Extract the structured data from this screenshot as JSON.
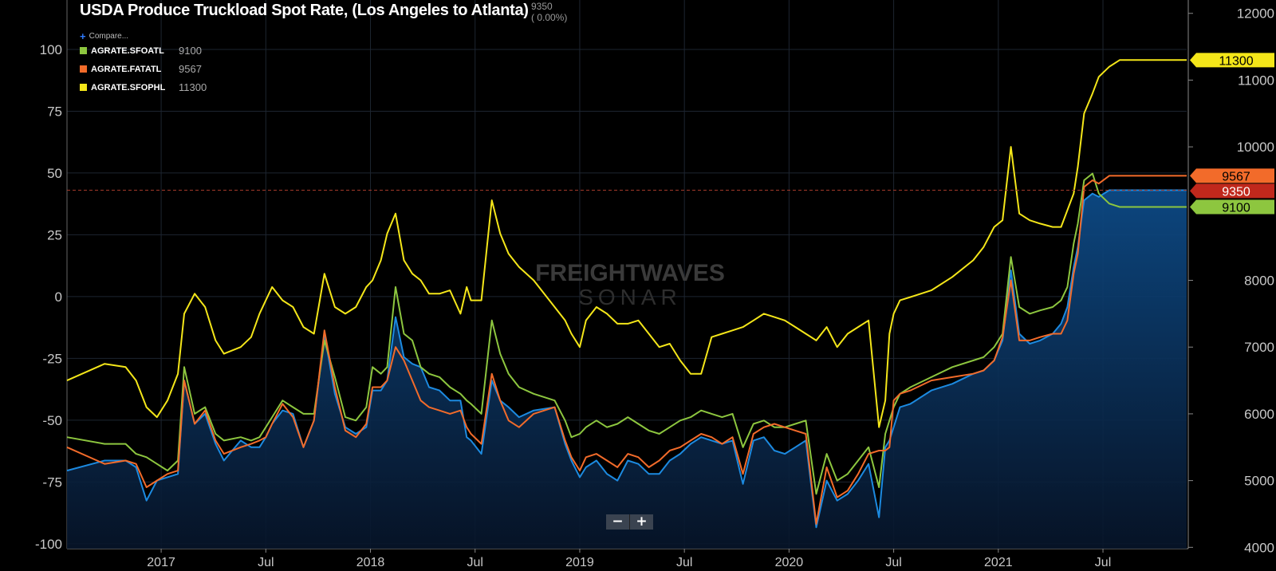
{
  "title": "USDA Produce Truckload Spot Rate, (Los Angeles to Atlanta)",
  "title_value": "9350",
  "title_change": "( 0.00%)",
  "compare_label": "Compare...",
  "legend": [
    {
      "name": "AGRATE.SFOATL",
      "value": "9100",
      "color": "#8dc63f"
    },
    {
      "name": "AGRATE.FATATL",
      "value": "9567",
      "color": "#f26b2a"
    },
    {
      "name": "AGRATE.SFOPHL",
      "value": "11300",
      "color": "#f4e619"
    }
  ],
  "watermark": {
    "line1": "FREIGHTWAVES",
    "line2": "SONAR"
  },
  "zoom": {
    "out": "−",
    "in": "+"
  },
  "chart_data": {
    "type": "line",
    "title": "USDA Produce Truckload Spot Rate, (Los Angeles to Atlanta)",
    "xlim": [
      2016.17,
      2021.52
    ],
    "x_ticks": [
      {
        "x": 2016.62,
        "label": "2017"
      },
      {
        "x": 2017.12,
        "label": "Jul"
      },
      {
        "x": 2017.62,
        "label": "2018"
      },
      {
        "x": 2018.12,
        "label": "Jul"
      },
      {
        "x": 2018.62,
        "label": "2019"
      },
      {
        "x": 2019.12,
        "label": "Jul"
      },
      {
        "x": 2019.62,
        "label": "2020"
      },
      {
        "x": 2020.12,
        "label": "Jul"
      },
      {
        "x": 2020.62,
        "label": "2021"
      },
      {
        "x": 2021.12,
        "label": "Jul"
      }
    ],
    "left_axis": {
      "ylim": [
        -102,
        120
      ],
      "ticks": [
        100,
        75,
        50,
        25,
        0,
        -25,
        -50,
        -75,
        -100
      ]
    },
    "right_axis": {
      "ylim": [
        3980,
        12200
      ],
      "ticks": [
        12000,
        11000,
        10000,
        8000,
        7000,
        6000,
        5000,
        4000
      ]
    },
    "reference_line": {
      "axis": "right",
      "value": 9350,
      "color": "#a33a2a"
    },
    "series": [
      {
        "name": "",
        "axis": "right",
        "color": "#1c8ae0",
        "fill": true,
        "x": [
          2016.17,
          2016.35,
          2016.45,
          2016.5,
          2016.55,
          2016.6,
          2016.65,
          2016.7,
          2016.73,
          2016.78,
          2016.83,
          2016.88,
          2016.92,
          2017.0,
          2017.05,
          2017.09,
          2017.12,
          2017.15,
          2017.2,
          2017.25,
          2017.3,
          2017.35,
          2017.4,
          2017.45,
          2017.5,
          2017.55,
          2017.6,
          2017.63,
          2017.67,
          2017.7,
          2017.74,
          2017.78,
          2017.82,
          2017.86,
          2017.9,
          2017.95,
          2018.0,
          2018.05,
          2018.08,
          2018.1,
          2018.15,
          2018.2,
          2018.24,
          2018.28,
          2018.33,
          2018.4,
          2018.5,
          2018.55,
          2018.58,
          2018.62,
          2018.65,
          2018.7,
          2018.75,
          2018.8,
          2018.85,
          2018.9,
          2018.95,
          2019.0,
          2019.05,
          2019.1,
          2019.15,
          2019.2,
          2019.25,
          2019.3,
          2019.35,
          2019.4,
          2019.45,
          2019.5,
          2019.55,
          2019.6,
          2019.65,
          2019.7,
          2019.75,
          2019.8,
          2019.85,
          2019.9,
          2019.95,
          2020.0,
          2020.05,
          2020.08,
          2020.1,
          2020.12,
          2020.15,
          2020.2,
          2020.3,
          2020.4,
          2020.5,
          2020.55,
          2020.6,
          2020.64,
          2020.68,
          2020.72,
          2020.77,
          2020.82,
          2020.88,
          2020.92,
          2020.95,
          2020.98,
          2021.0,
          2021.03,
          2021.07,
          2021.1,
          2021.15,
          2021.2,
          2021.3,
          2021.35,
          2021.4,
          2021.45,
          2021.52
        ],
        "y": [
          5150,
          5300,
          5300,
          5200,
          4700,
          5000,
          5050,
          5100,
          6500,
          5850,
          6000,
          5550,
          5300,
          5600,
          5500,
          5500,
          5650,
          5850,
          6050,
          6000,
          5500,
          5900,
          7200,
          6300,
          5800,
          5700,
          5800,
          6350,
          6350,
          6500,
          7450,
          6850,
          6750,
          6700,
          6400,
          6350,
          6200,
          6200,
          5650,
          5600,
          5400,
          6500,
          6200,
          6100,
          5950,
          6050,
          6100,
          5550,
          5300,
          5050,
          5200,
          5300,
          5100,
          5000,
          5300,
          5250,
          5100,
          5100,
          5300,
          5400,
          5550,
          5650,
          5600,
          5550,
          5600,
          4950,
          5600,
          5650,
          5450,
          5400,
          5500,
          5600,
          4300,
          5000,
          4700,
          4800,
          5000,
          5250,
          4450,
          5500,
          5600,
          5800,
          6100,
          6150,
          6350,
          6450,
          6600,
          6650,
          6800,
          7100,
          8150,
          7200,
          7050,
          7100,
          7200,
          7350,
          7600,
          8200,
          8500,
          9200,
          9300,
          9250,
          9350,
          9350,
          9350,
          9350,
          9350,
          9350,
          9350
        ]
      },
      {
        "name": "AGRATE.SFOATL",
        "axis": "right",
        "color": "#8dc63f",
        "x": [
          2016.17,
          2016.35,
          2016.45,
          2016.5,
          2016.55,
          2016.6,
          2016.65,
          2016.7,
          2016.73,
          2016.78,
          2016.83,
          2016.88,
          2016.92,
          2017.0,
          2017.05,
          2017.09,
          2017.12,
          2017.15,
          2017.2,
          2017.25,
          2017.3,
          2017.35,
          2017.4,
          2017.45,
          2017.5,
          2017.55,
          2017.6,
          2017.63,
          2017.67,
          2017.7,
          2017.74,
          2017.78,
          2017.82,
          2017.86,
          2017.9,
          2017.95,
          2018.0,
          2018.05,
          2018.08,
          2018.1,
          2018.15,
          2018.2,
          2018.24,
          2018.28,
          2018.33,
          2018.4,
          2018.5,
          2018.55,
          2018.58,
          2018.62,
          2018.65,
          2018.7,
          2018.75,
          2018.8,
          2018.85,
          2018.9,
          2018.95,
          2019.0,
          2019.05,
          2019.1,
          2019.15,
          2019.2,
          2019.25,
          2019.3,
          2019.35,
          2019.4,
          2019.45,
          2019.5,
          2019.55,
          2019.6,
          2019.65,
          2019.7,
          2019.75,
          2019.8,
          2019.85,
          2019.9,
          2019.95,
          2020.0,
          2020.05,
          2020.08,
          2020.1,
          2020.12,
          2020.15,
          2020.2,
          2020.3,
          2020.4,
          2020.5,
          2020.55,
          2020.6,
          2020.64,
          2020.68,
          2020.72,
          2020.77,
          2020.82,
          2020.88,
          2020.92,
          2020.95,
          2020.98,
          2021.0,
          2021.03,
          2021.07,
          2021.1,
          2021.15,
          2021.2,
          2021.3,
          2021.35,
          2021.4,
          2021.45,
          2021.52
        ],
        "y": [
          5650,
          5550,
          5550,
          5400,
          5350,
          5250,
          5150,
          5300,
          6700,
          6000,
          6100,
          5700,
          5600,
          5650,
          5600,
          5650,
          5800,
          5950,
          6200,
          6100,
          6000,
          6000,
          7100,
          6550,
          5950,
          5900,
          6100,
          6700,
          6600,
          6700,
          7900,
          7200,
          7100,
          6700,
          6600,
          6550,
          6400,
          6300,
          6200,
          6150,
          6000,
          7400,
          6900,
          6600,
          6400,
          6300,
          6200,
          5900,
          5650,
          5700,
          5800,
          5900,
          5800,
          5850,
          5950,
          5850,
          5750,
          5700,
          5800,
          5900,
          5950,
          6050,
          6000,
          5950,
          6000,
          5500,
          5850,
          5900,
          5800,
          5800,
          5850,
          5900,
          4800,
          5400,
          5000,
          5100,
          5300,
          5500,
          4900,
          5700,
          5900,
          6100,
          6300,
          6400,
          6550,
          6700,
          6800,
          6850,
          7000,
          7200,
          8350,
          7600,
          7500,
          7550,
          7600,
          7700,
          7900,
          8550,
          8850,
          9500,
          9600,
          9300,
          9150,
          9100,
          9100,
          9100,
          9100,
          9100,
          9100
        ]
      },
      {
        "name": "AGRATE.FATATL",
        "axis": "right",
        "color": "#f26b2a",
        "x": [
          2016.17,
          2016.35,
          2016.45,
          2016.5,
          2016.55,
          2016.6,
          2016.65,
          2016.7,
          2016.73,
          2016.78,
          2016.83,
          2016.88,
          2016.92,
          2017.0,
          2017.05,
          2017.09,
          2017.12,
          2017.15,
          2017.2,
          2017.25,
          2017.3,
          2017.35,
          2017.4,
          2017.45,
          2017.5,
          2017.55,
          2017.6,
          2017.63,
          2017.67,
          2017.7,
          2017.74,
          2017.78,
          2017.82,
          2017.86,
          2017.9,
          2017.95,
          2018.0,
          2018.05,
          2018.08,
          2018.1,
          2018.15,
          2018.2,
          2018.24,
          2018.28,
          2018.33,
          2018.4,
          2018.5,
          2018.55,
          2018.58,
          2018.62,
          2018.65,
          2018.7,
          2018.75,
          2018.8,
          2018.85,
          2018.9,
          2018.95,
          2019.0,
          2019.05,
          2019.1,
          2019.15,
          2019.2,
          2019.25,
          2019.3,
          2019.35,
          2019.4,
          2019.45,
          2019.5,
          2019.55,
          2019.6,
          2019.65,
          2019.7,
          2019.75,
          2019.8,
          2019.85,
          2019.9,
          2019.95,
          2020.0,
          2020.05,
          2020.08,
          2020.1,
          2020.12,
          2020.15,
          2020.2,
          2020.3,
          2020.4,
          2020.5,
          2020.55,
          2020.6,
          2020.64,
          2020.68,
          2020.72,
          2020.77,
          2020.82,
          2020.88,
          2020.92,
          2020.95,
          2020.98,
          2021.0,
          2021.03,
          2021.07,
          2021.1,
          2021.15,
          2021.2,
          2021.3,
          2021.35,
          2021.4,
          2021.45,
          2021.52
        ],
        "y": [
          5500,
          5250,
          5300,
          5250,
          4900,
          5000,
          5100,
          5150,
          6500,
          5850,
          6050,
          5600,
          5400,
          5500,
          5550,
          5600,
          5650,
          5850,
          6150,
          5950,
          5500,
          5900,
          7250,
          6400,
          5750,
          5650,
          5850,
          6400,
          6400,
          6500,
          7000,
          6800,
          6500,
          6200,
          6100,
          6050,
          6000,
          6050,
          5800,
          5700,
          5550,
          6600,
          6200,
          5900,
          5800,
          6000,
          6100,
          5600,
          5350,
          5150,
          5350,
          5400,
          5300,
          5200,
          5400,
          5350,
          5200,
          5300,
          5450,
          5500,
          5600,
          5700,
          5650,
          5550,
          5650,
          5100,
          5700,
          5800,
          5850,
          5800,
          5750,
          5700,
          4350,
          5200,
          4750,
          4850,
          5100,
          5400,
          5450,
          5450,
          5500,
          6200,
          6300,
          6350,
          6500,
          6550,
          6600,
          6650,
          6800,
          7150,
          8000,
          7100,
          7100,
          7150,
          7200,
          7200,
          7400,
          8100,
          8400,
          9400,
          9500,
          9450,
          9567,
          9567,
          9567,
          9567,
          9567,
          9567,
          9567
        ]
      },
      {
        "name": "AGRATE.SFOPHL",
        "axis": "right",
        "color": "#f4e619",
        "x": [
          2016.17,
          2016.35,
          2016.45,
          2016.5,
          2016.55,
          2016.6,
          2016.65,
          2016.7,
          2016.73,
          2016.78,
          2016.83,
          2016.88,
          2016.92,
          2017.0,
          2017.05,
          2017.09,
          2017.12,
          2017.15,
          2017.2,
          2017.25,
          2017.3,
          2017.35,
          2017.4,
          2017.45,
          2017.5,
          2017.55,
          2017.6,
          2017.63,
          2017.67,
          2017.7,
          2017.74,
          2017.78,
          2017.82,
          2017.86,
          2017.9,
          2017.95,
          2018.0,
          2018.05,
          2018.08,
          2018.1,
          2018.15,
          2018.2,
          2018.24,
          2018.28,
          2018.33,
          2018.4,
          2018.5,
          2018.55,
          2018.58,
          2018.62,
          2018.65,
          2018.7,
          2018.75,
          2018.8,
          2018.85,
          2018.9,
          2018.95,
          2019.0,
          2019.05,
          2019.1,
          2019.15,
          2019.2,
          2019.25,
          2019.3,
          2019.35,
          2019.4,
          2019.45,
          2019.5,
          2019.55,
          2019.6,
          2019.65,
          2019.7,
          2019.75,
          2019.8,
          2019.85,
          2019.9,
          2019.95,
          2020.0,
          2020.05,
          2020.08,
          2020.1,
          2020.12,
          2020.15,
          2020.2,
          2020.3,
          2020.4,
          2020.5,
          2020.55,
          2020.6,
          2020.64,
          2020.68,
          2020.72,
          2020.77,
          2020.82,
          2020.88,
          2020.92,
          2020.95,
          2020.98,
          2021.0,
          2021.03,
          2021.07,
          2021.1,
          2021.15,
          2021.2,
          2021.3,
          2021.35,
          2021.4,
          2021.45,
          2021.52
        ],
        "y": [
          6500,
          6750,
          6700,
          6500,
          6100,
          5950,
          6200,
          6600,
          7500,
          7800,
          7600,
          7100,
          6900,
          7000,
          7150,
          7500,
          7700,
          7900,
          7700,
          7600,
          7300,
          7200,
          8100,
          7600,
          7500,
          7600,
          7900,
          8000,
          8300,
          8700,
          9000,
          8300,
          8100,
          8000,
          7800,
          7800,
          7850,
          7500,
          7900,
          7700,
          7700,
          9200,
          8700,
          8400,
          8200,
          8000,
          7600,
          7400,
          7200,
          7000,
          7400,
          7600,
          7500,
          7350,
          7350,
          7400,
          7200,
          7000,
          7050,
          6800,
          6600,
          6600,
          7150,
          7200,
          7250,
          7300,
          7400,
          7500,
          7450,
          7400,
          7300,
          7200,
          7100,
          7300,
          7000,
          7200,
          7300,
          7400,
          5800,
          6200,
          7200,
          7500,
          7700,
          7750,
          7850,
          8050,
          8300,
          8500,
          8800,
          8900,
          10000,
          9000,
          8900,
          8850,
          8800,
          8800,
          9050,
          9300,
          9700,
          10500,
          10800,
          11050,
          11200,
          11300,
          11300,
          11300,
          11300,
          11300,
          11300
        ]
      }
    ],
    "last_value_tags": [
      {
        "value": "11300",
        "color": "#f4e619",
        "text_color": "#000000"
      },
      {
        "value": "9567",
        "color": "#f26b2a",
        "text_color": "#000000"
      },
      {
        "value": "9350",
        "color": "#c0281c",
        "text_color": "#ffffff"
      },
      {
        "value": "9100",
        "color": "#8dc63f",
        "text_color": "#000000"
      }
    ]
  }
}
